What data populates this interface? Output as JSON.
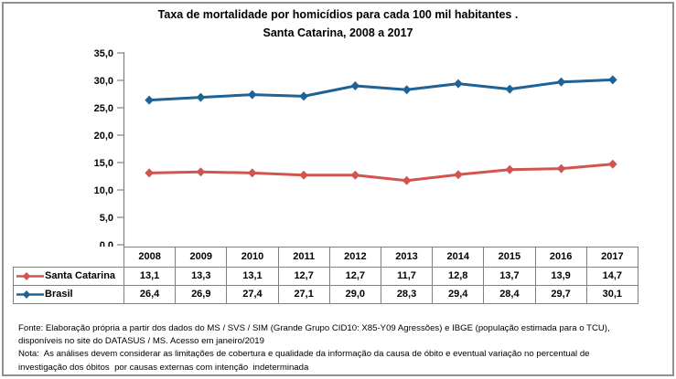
{
  "figure": {
    "title_line1": "Taxa de mortalidade por homicídios para cada 100 mil habitantes .",
    "title_line2": "Santa Catarina, 2008 a 2017"
  },
  "chart_data": {
    "type": "line",
    "title": "Taxa de mortalidade por homicídios para cada 100 mil habitantes . Santa Catarina, 2008 a 2017",
    "xlabel": "",
    "ylabel": "",
    "categories": [
      "2008",
      "2009",
      "2010",
      "2011",
      "2012",
      "2013",
      "2014",
      "2015",
      "2016",
      "2017"
    ],
    "series": [
      {
        "name": "Santa Catarina",
        "color": "#D2544F",
        "values": [
          13.1,
          13.3,
          13.1,
          12.7,
          12.7,
          11.7,
          12.8,
          13.7,
          13.9,
          14.7
        ],
        "labels": [
          "13,1",
          "13,3",
          "13,1",
          "12,7",
          "12,7",
          "11,7",
          "12,8",
          "13,7",
          "13,9",
          "14,7"
        ]
      },
      {
        "name": "Brasil",
        "color": "#1F6295",
        "values": [
          26.4,
          26.9,
          27.4,
          27.1,
          29.0,
          28.3,
          29.4,
          28.4,
          29.7,
          30.1
        ],
        "labels": [
          "26,4",
          "26,9",
          "27,4",
          "27,1",
          "29,0",
          "28,3",
          "29,4",
          "28,4",
          "29,7",
          "30,1"
        ]
      }
    ],
    "yaxis": {
      "min": 0,
      "max": 35,
      "step": 5,
      "tick_labels": [
        "35,0",
        "30,0",
        "25,0",
        "20,0",
        "15,0",
        "10,0",
        "5,0",
        "0,0"
      ]
    },
    "marker": "diamond",
    "grid": false,
    "legend_position": "data-table-left",
    "data_table": true,
    "axis_color": "#808080"
  },
  "footer": {
    "lines": [
      "Fonte: Elaboração própria a partir dos dados do MS / SVS / SIM (Grande Grupo CID10: X85-Y09 Agressões) e IBGE (população estimada para o TCU),",
      "disponíveis no site do DATASUS / MS. Acesso em janeiro/2019",
      "Nota:  As análises devem considerar as limitações de cobertura e qualidade da informação da causa de óbito e eventual variação no percentual de",
      "investigação dos óbitos  por causas externas com intenção  indeterminada"
    ]
  }
}
